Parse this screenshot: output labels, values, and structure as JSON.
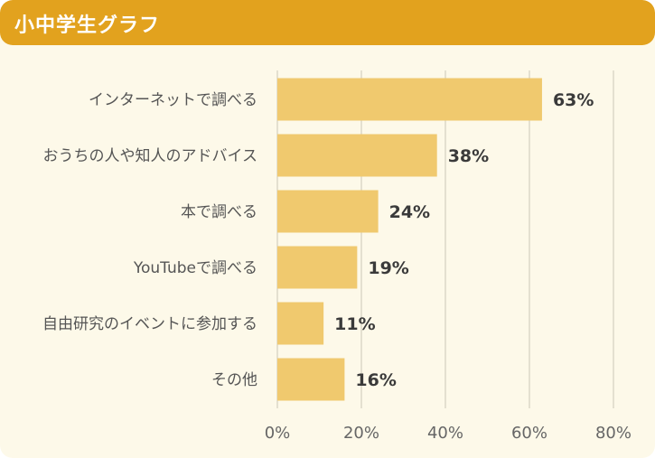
{
  "header": {
    "title": "小中学生グラフ"
  },
  "colors": {
    "header": "#e2a21e",
    "background": "#fdf9e9",
    "bar": "#f0c96e",
    "grid": "#dcd8c8"
  },
  "chart_data": {
    "type": "bar",
    "orientation": "horizontal",
    "categories": [
      "インターネットで調べる",
      "おうちの人や知人のアドバイス",
      "本で調べる",
      "YouTubeで調べる",
      "自由研究のイベントに参加する",
      "その他"
    ],
    "values": [
      63,
      38,
      24,
      19,
      11,
      16
    ],
    "value_labels": [
      "63%",
      "38%",
      "24%",
      "19%",
      "11%",
      "16%"
    ],
    "xlim": [
      0,
      80
    ],
    "xticks": [
      0,
      20,
      40,
      60,
      80
    ],
    "xtick_labels": [
      "0%",
      "20%",
      "40%",
      "60%",
      "80%"
    ],
    "grid": "vertical"
  }
}
